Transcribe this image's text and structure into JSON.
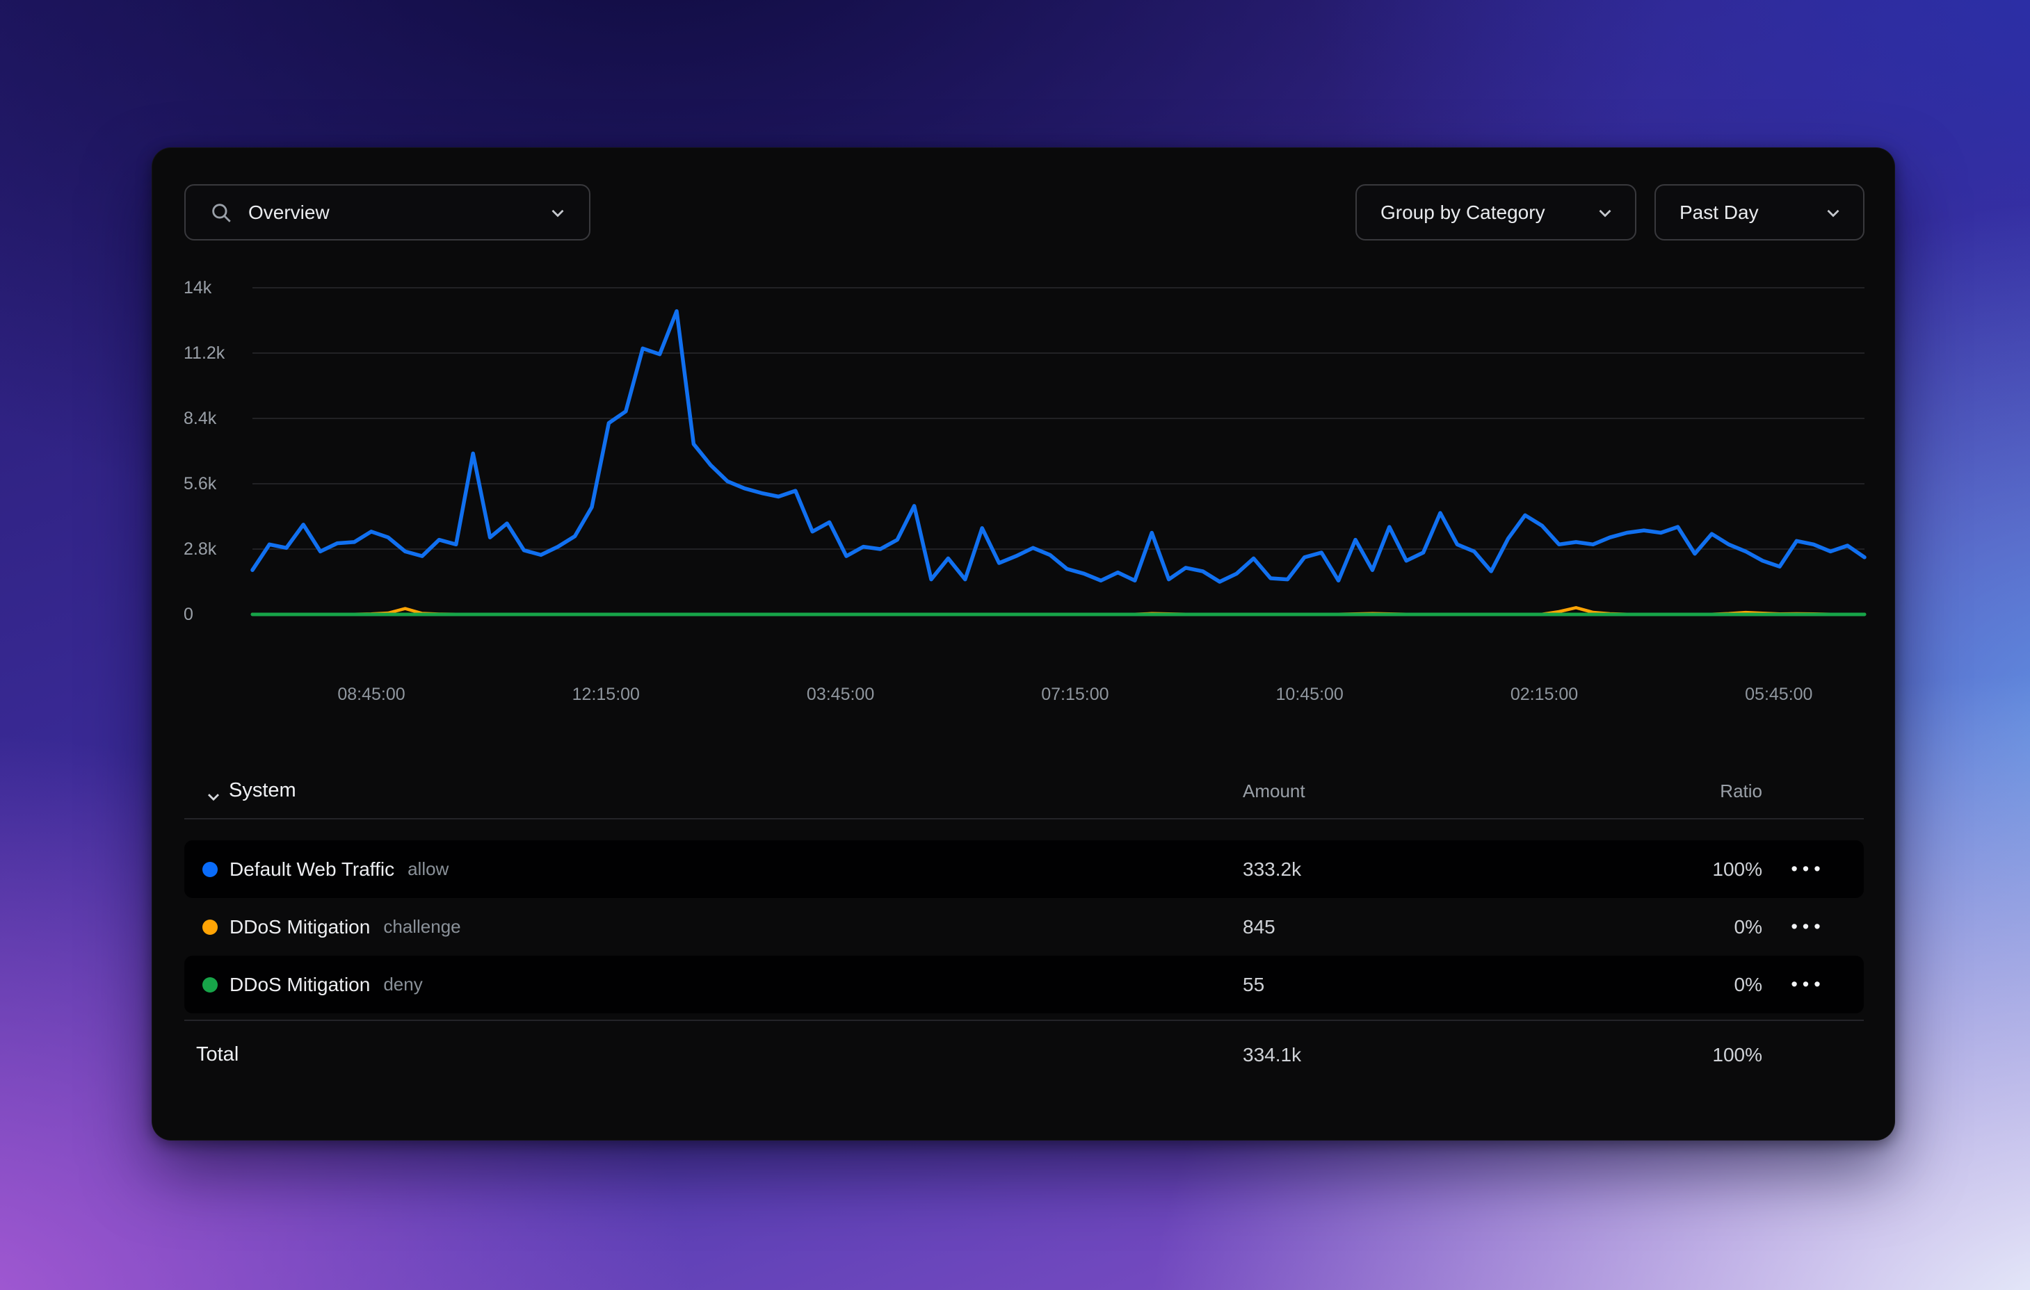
{
  "toolbar": {
    "metric_selector": {
      "label": "Overview",
      "leading_icon": "search-icon",
      "trailing_icon": "chevron-down-icon"
    },
    "group_by": {
      "label": "Group by Category",
      "trailing_icon": "chevron-down-icon"
    },
    "time_range": {
      "label": "Past Day",
      "trailing_icon": "chevron-down-icon"
    }
  },
  "chart_data": {
    "type": "line",
    "title": "",
    "xlabel": "",
    "ylabel": "",
    "grid": true,
    "legend_position": "table-below",
    "ylim": [
      0,
      14000
    ],
    "x_ticks": [
      "08:45:00",
      "12:15:00",
      "03:45:00",
      "07:15:00",
      "10:45:00",
      "02:15:00",
      "05:45:00"
    ],
    "y_ticks": [
      {
        "label": "0",
        "value": 0
      },
      {
        "label": "2.8k",
        "value": 2800
      },
      {
        "label": "5.6k",
        "value": 5600
      },
      {
        "label": "8.4k",
        "value": 8400
      },
      {
        "label": "11.2k",
        "value": 11200
      },
      {
        "label": "14k",
        "value": 14000
      }
    ],
    "series": [
      {
        "name": "DDoS Mitigation challenge",
        "color": "#ffa405",
        "width": 4.5,
        "values": [
          10,
          10,
          10,
          10,
          10,
          10,
          10,
          20,
          60,
          250,
          45,
          15,
          10,
          10,
          10,
          10,
          10,
          10,
          10,
          10,
          10,
          10,
          10,
          10,
          10,
          10,
          10,
          10,
          10,
          10,
          10,
          10,
          10,
          10,
          10,
          10,
          10,
          10,
          10,
          10,
          10,
          10,
          10,
          10,
          10,
          10,
          10,
          10,
          10,
          10,
          10,
          10,
          10,
          35,
          20,
          10,
          10,
          10,
          10,
          10,
          10,
          10,
          10,
          10,
          10,
          25,
          40,
          25,
          10,
          10,
          10,
          10,
          10,
          10,
          10,
          10,
          10,
          120,
          290,
          90,
          30,
          10,
          10,
          10,
          10,
          10,
          10,
          40,
          85,
          50,
          25,
          30,
          20,
          10,
          10,
          10
        ]
      },
      {
        "name": "DDoS Mitigation deny",
        "color": "#17a449",
        "width": 5,
        "values": [
          0,
          0,
          0,
          0,
          0,
          0,
          0,
          0,
          0,
          0,
          0,
          0,
          0,
          0,
          0,
          0,
          0,
          0,
          0,
          0,
          0,
          0,
          0,
          0,
          0,
          0,
          0,
          0,
          0,
          0,
          0,
          0,
          0,
          0,
          0,
          0,
          0,
          0,
          0,
          0,
          0,
          0,
          0,
          0,
          0,
          0,
          0,
          0,
          0,
          0,
          0,
          0,
          0,
          0,
          0,
          0,
          0,
          0,
          0,
          0,
          0,
          0,
          0,
          0,
          0,
          0,
          0,
          0,
          0,
          0,
          0,
          0,
          0,
          0,
          0,
          0,
          0,
          0,
          0,
          0,
          0,
          0,
          0,
          0,
          0,
          0,
          0,
          0,
          0,
          0,
          0,
          0,
          0,
          0,
          0,
          0
        ]
      },
      {
        "name": "Default Web Traffic allow",
        "color": "#1170f0",
        "width": 5.5,
        "values": [
          1900,
          3000,
          2850,
          3850,
          2700,
          3050,
          3100,
          3550,
          3300,
          2700,
          2500,
          3200,
          3000,
          6900,
          3300,
          3900,
          2750,
          2550,
          2900,
          3350,
          4600,
          8200,
          8700,
          11400,
          11150,
          13000,
          7300,
          6400,
          5700,
          5400,
          5200,
          5050,
          5300,
          3550,
          3950,
          2500,
          2900,
          2800,
          3200,
          4650,
          1500,
          2400,
          1500,
          3700,
          2200,
          2500,
          2850,
          2550,
          1950,
          1750,
          1450,
          1800,
          1450,
          3500,
          1500,
          2000,
          1850,
          1400,
          1750,
          2400,
          1550,
          1500,
          2450,
          2650,
          1450,
          3200,
          1900,
          3750,
          2300,
          2650,
          4350,
          3000,
          2700,
          1850,
          3250,
          4250,
          3800,
          3000,
          3100,
          3000,
          3300,
          3500,
          3600,
          3500,
          3750,
          2600,
          3450,
          3000,
          2700,
          2300,
          2050,
          3150,
          3000,
          2700,
          2950,
          2450
        ]
      }
    ]
  },
  "table": {
    "group_header": "System",
    "group_toggle_icon": "chevron-down-icon",
    "columns": {
      "amount": "Amount",
      "ratio": "Ratio"
    },
    "rows": [
      {
        "name": "Default Web Traffic",
        "tag": "allow",
        "dot_color": "#0a6cfa",
        "amount": "333.2k",
        "ratio": "100%",
        "menu_icon": "ellipsis-icon"
      },
      {
        "name": "DDoS Mitigation",
        "tag": "challenge",
        "dot_color": "#ffa405",
        "amount": "845",
        "ratio": "0%",
        "menu_icon": "ellipsis-icon"
      },
      {
        "name": "DDoS Mitigation",
        "tag": "deny",
        "dot_color": "#17a449",
        "amount": "55",
        "ratio": "0%",
        "menu_icon": "ellipsis-icon"
      }
    ],
    "total": {
      "label": "Total",
      "amount": "334.1k",
      "ratio": "100%"
    }
  },
  "colors": {
    "card_background": "#0a0a0b",
    "row_stripe": "#010102",
    "gridline": "#2b2b2e",
    "divider": "#242428",
    "accent_blue": "#1170f0",
    "accent_orange": "#ffa405",
    "accent_green": "#17a449"
  }
}
